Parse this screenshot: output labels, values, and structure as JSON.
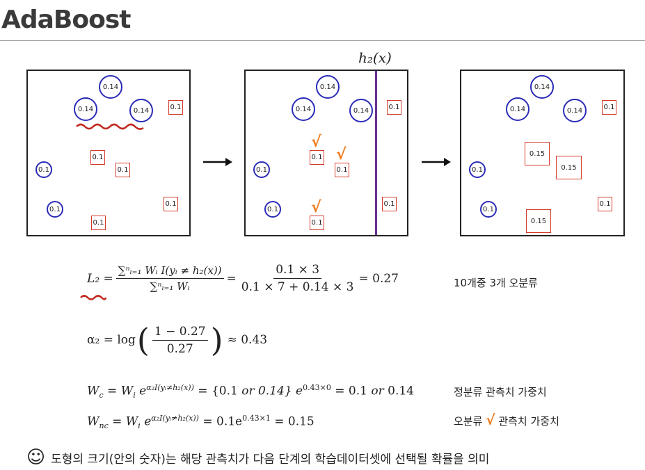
{
  "title": "AdaBoost",
  "h2_label": "h₂(x)",
  "panel1": {
    "circles": [
      "0.14",
      "0.14",
      "0.14",
      "0.1",
      "0.1"
    ],
    "squares": [
      "0.1",
      "0.1",
      "0.1",
      "0.1",
      "0.1"
    ]
  },
  "panel2": {
    "circles": [
      "0.14",
      "0.14",
      "0.14",
      "0.1",
      "0.1"
    ],
    "squares": [
      "0.1",
      "0.1",
      "0.1",
      "0.1",
      "0.1"
    ],
    "check": "√"
  },
  "panel3": {
    "circles": [
      "0.14",
      "0.14",
      "0.14",
      "0.1",
      "0.1"
    ],
    "squares": [
      "0.1",
      "0.15",
      "0.15",
      "0.1",
      "0.15"
    ]
  },
  "eq1": {
    "lhs": "L₂ =",
    "num": "∑ⁿᵢ₌₁ Wᵢ I(yᵢ ≠ h₂(x))",
    "den": "∑ⁿᵢ₌₁ Wᵢ",
    "eq": "=",
    "num2": "0.1 × 3",
    "den2": "0.1 × 7 + 0.14 × 3",
    "rhs": "= 0.27"
  },
  "note1": "10개중 3개 오분류",
  "eq2": {
    "lhs": "α₂ = log",
    "num": "1 − 0.27",
    "den": "0.27",
    "rhs": "≈ 0.43"
  },
  "eq3": "W꜀ = Wᵢ e^{α₂I(yᵢ≠h₂(x))} = {0.1 or 0.14} e^{0.43×0} = 0.1 or 0.14",
  "eq3_parts": {
    "a": "W",
    "a_sub": "c",
    "b": " = W",
    "b_sub": "i",
    "c": " e",
    "c_sup": "α₂I(yᵢ≠h₂(x))",
    "d": " = {0.1 ",
    "or1": "or",
    "e": " 0.14} e",
    "e_sup": "0.43×0",
    "f": " = 0.1 ",
    "or2": "or",
    "g": " 0.14"
  },
  "note2": "정분류 관측치 가중치",
  "eq4_parts": {
    "a": "W",
    "a_sub": "nc",
    "b": " = W",
    "b_sub": "i",
    "c": " e",
    "c_sup": "α₂I(yᵢ≠h₂(x))",
    "d": " = 0.1e",
    "d_sup": "0.43×1",
    "e": " = 0.15"
  },
  "note3_a": "오분류",
  "note3_check": "√",
  "note3_b": "관측치 가중치",
  "smiley": "☺",
  "footer": "도형의 크기(안의 숫자)는 해당 관측치가 다음 단계의 학습데이터셋에 선택될 확률을 의미",
  "colors": {
    "circle": "#2b2bb8",
    "square": "#d43a2a",
    "check": "#f07a1a",
    "divider": "#6b2f8f",
    "squiggle": "#c0281e"
  }
}
